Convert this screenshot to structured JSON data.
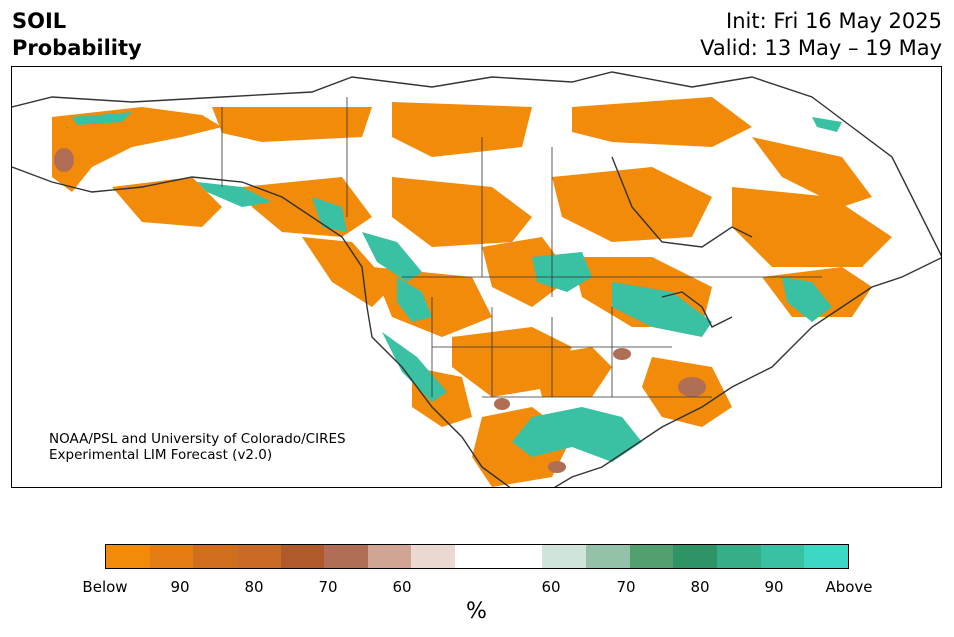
{
  "header": {
    "variable": "SOIL",
    "product": "Probability",
    "init": "Init: Fri 16 May 2025",
    "valid": "Valid: 13 May – 19 May"
  },
  "credit": {
    "line1": "NOAA/PSL and University of Colorado/CIRES",
    "line2": "Experimental LIM Forecast (v2.0)"
  },
  "colorbar": {
    "colors": [
      "#f28a0a",
      "#e47d14",
      "#d06e1e",
      "#c96a25",
      "#b05a2c",
      "#b06f55",
      "#d0a593",
      "#e9d9d0",
      "#ffffff",
      "#ffffff",
      "#cfe4da",
      "#93c2a8",
      "#519f6e",
      "#2e9466",
      "#36ae87",
      "#3ac1a3",
      "#3dd7c3"
    ],
    "tick_labels": [
      "Below",
      "90",
      "80",
      "70",
      "60",
      "60",
      "70",
      "80",
      "90",
      "Above"
    ],
    "unit": "%"
  },
  "map": {
    "region": "North America",
    "legend_meaning": {
      "orange_brown": "Below-normal probability",
      "green_teal": "Above-normal probability"
    }
  }
}
